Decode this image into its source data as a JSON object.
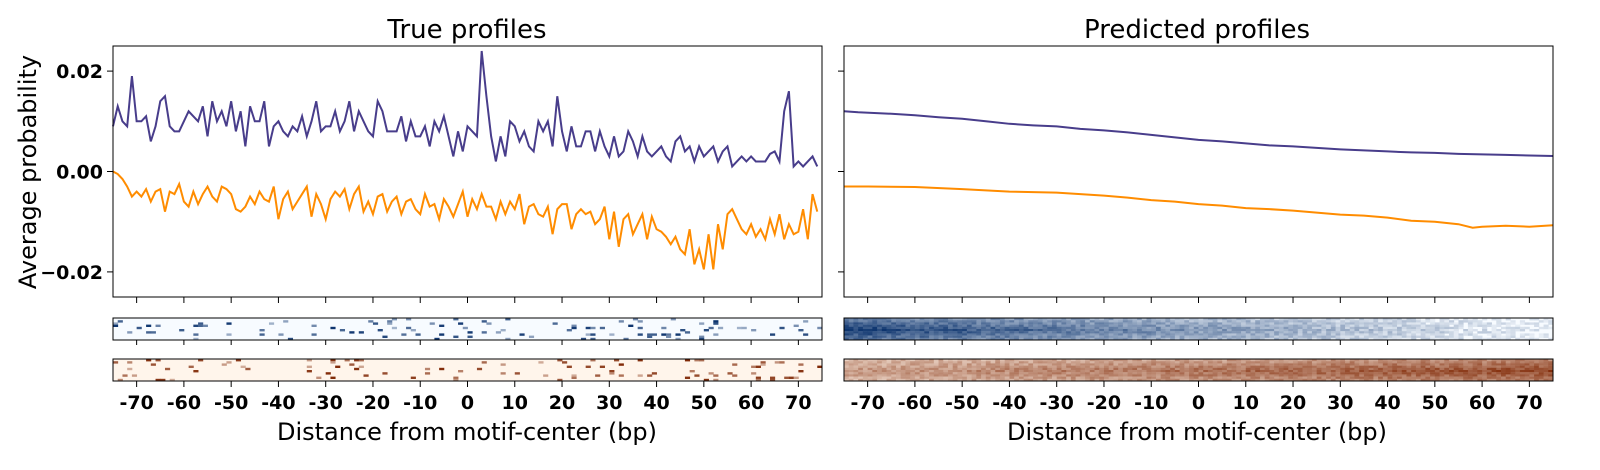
{
  "figure": {
    "y_axis_label": "Average probability",
    "x_axis_label": "Distance from motif-center (bp)"
  },
  "colors": {
    "series_purple": "#483D8B",
    "series_orange": "#FF8C00",
    "heatmap_blue_low": "#f7fbff",
    "heatmap_blue_high": "#08306b",
    "heatmap_orange_low": "#fff5eb",
    "heatmap_orange_high": "#7f2704"
  },
  "chart_data": [
    {
      "type": "line",
      "title": "True profiles",
      "xlabel": "Distance from motif-center (bp)",
      "ylabel": "Average probability",
      "xlim": [
        -75,
        75
      ],
      "ylim": [
        -0.025,
        0.025
      ],
      "xticks": [
        -70,
        -60,
        -50,
        -40,
        -30,
        -20,
        -10,
        0,
        10,
        20,
        30,
        40,
        50,
        60,
        70
      ],
      "yticks": [
        0.02,
        0.0,
        -0.02
      ],
      "ytick_labels": [
        "0.02",
        "0.00",
        "−0.02"
      ],
      "x_start": -75,
      "x_step": 1,
      "series": [
        {
          "values": [
            0.009,
            0.013,
            0.01,
            0.009,
            0.019,
            0.01,
            0.01,
            0.011,
            0.006,
            0.009,
            0.014,
            0.015,
            0.009,
            0.008,
            0.008,
            0.01,
            0.012,
            0.011,
            0.01,
            0.013,
            0.007,
            0.014,
            0.01,
            0.012,
            0.009,
            0.014,
            0.008,
            0.012,
            0.005,
            0.013,
            0.01,
            0.01,
            0.014,
            0.005,
            0.009,
            0.01,
            0.008,
            0.007,
            0.009,
            0.008,
            0.011,
            0.007,
            0.01,
            0.014,
            0.008,
            0.009,
            0.009,
            0.012,
            0.008,
            0.01,
            0.014,
            0.008,
            0.012,
            0.01,
            0.008,
            0.007,
            0.014,
            0.012,
            0.008,
            0.008,
            0.008,
            0.011,
            0.006,
            0.01,
            0.007,
            0.007,
            0.009,
            0.005,
            0.01,
            0.008,
            0.011,
            0.007,
            0.003,
            0.008,
            0.004,
            0.009,
            0.008,
            0.007,
            0.024,
            0.015,
            0.007,
            0.002,
            0.007,
            0.003,
            0.01,
            0.009,
            0.006,
            0.008,
            0.005,
            0.004,
            0.01,
            0.008,
            0.01,
            0.005,
            0.015,
            0.008,
            0.004,
            0.009,
            0.005,
            0.005,
            0.008,
            0.008,
            0.004,
            0.008,
            0.005,
            0.003,
            0.007,
            0.003,
            0.004,
            0.008,
            0.006,
            0.003,
            0.007,
            0.004,
            0.003,
            0.004,
            0.005,
            0.003,
            0.002,
            0.006,
            0.007,
            0.004,
            0.005,
            0.002,
            0.005,
            0.003,
            0.004,
            0.005,
            0.002,
            0.004,
            0.005,
            0.001,
            0.002,
            0.003,
            0.002,
            0.003,
            0.002,
            0.002,
            0.002,
            0.0035,
            0.004,
            0.002,
            0.012,
            0.016,
            0.001,
            0.002,
            0.001,
            0.002,
            0.003,
            0.001
          ]
        },
        {
          "values": [
            0.0,
            -0.0005,
            -0.0015,
            -0.003,
            -0.005,
            -0.004,
            -0.005,
            -0.0035,
            -0.006,
            -0.004,
            -0.0035,
            -0.008,
            -0.004,
            -0.0045,
            -0.0025,
            -0.006,
            -0.007,
            -0.004,
            -0.0065,
            -0.0045,
            -0.003,
            -0.005,
            -0.006,
            -0.003,
            -0.0035,
            -0.0045,
            -0.0075,
            -0.008,
            -0.007,
            -0.005,
            -0.0065,
            -0.004,
            -0.0055,
            -0.006,
            -0.003,
            -0.0095,
            -0.0055,
            -0.004,
            -0.0075,
            -0.006,
            -0.0045,
            -0.003,
            -0.009,
            -0.0045,
            -0.0065,
            -0.0095,
            -0.0055,
            -0.004,
            -0.005,
            -0.0035,
            -0.0075,
            -0.0045,
            -0.003,
            -0.008,
            -0.006,
            -0.0085,
            -0.005,
            -0.0045,
            -0.008,
            -0.006,
            -0.005,
            -0.0085,
            -0.006,
            -0.0055,
            -0.0075,
            -0.0085,
            -0.0045,
            -0.007,
            -0.0065,
            -0.0095,
            -0.0055,
            -0.007,
            -0.009,
            -0.0065,
            -0.004,
            -0.009,
            -0.0055,
            -0.0075,
            -0.0045,
            -0.007,
            -0.007,
            -0.0095,
            -0.006,
            -0.0085,
            -0.006,
            -0.0075,
            -0.0045,
            -0.0105,
            -0.007,
            -0.0065,
            -0.0085,
            -0.009,
            -0.007,
            -0.0125,
            -0.0075,
            -0.0065,
            -0.0065,
            -0.0115,
            -0.0085,
            -0.0075,
            -0.0085,
            -0.008,
            -0.0105,
            -0.0095,
            -0.007,
            -0.0135,
            -0.008,
            -0.015,
            -0.0095,
            -0.0085,
            -0.0125,
            -0.0105,
            -0.0085,
            -0.0135,
            -0.009,
            -0.0115,
            -0.012,
            -0.013,
            -0.0145,
            -0.013,
            -0.0155,
            -0.0165,
            -0.0115,
            -0.0185,
            -0.0155,
            -0.0195,
            -0.0125,
            -0.0195,
            -0.0105,
            -0.0155,
            -0.0085,
            -0.0075,
            -0.0095,
            -0.0115,
            -0.0125,
            -0.0105,
            -0.013,
            -0.0115,
            -0.0135,
            -0.0095,
            -0.0125,
            -0.0085,
            -0.0135,
            -0.0105,
            -0.0125,
            -0.012,
            -0.0075,
            -0.0135,
            -0.0045,
            -0.008
          ]
        }
      ],
      "heatmaps": {
        "rows": 10,
        "top_palette": "blue",
        "bottom_palette": "orange",
        "pattern": "sparse"
      }
    },
    {
      "type": "line",
      "title": "Predicted profiles",
      "xlabel": "Distance from motif-center (bp)",
      "xlim": [
        -75,
        75
      ],
      "ylim": [
        -0.025,
        0.025
      ],
      "xticks": [
        -70,
        -60,
        -50,
        -40,
        -30,
        -20,
        -10,
        0,
        10,
        20,
        30,
        40,
        50,
        60,
        70
      ],
      "yticks": [
        0.02,
        0.0,
        -0.02
      ],
      "x_start": -75,
      "x_step": 1,
      "series": [
        {
          "points": [
            [
              -75,
              0.012
            ],
            [
              -72,
              0.0118
            ],
            [
              -65,
              0.0115
            ],
            [
              -60,
              0.0112
            ],
            [
              -55,
              0.0108
            ],
            [
              -50,
              0.0105
            ],
            [
              -45,
              0.01
            ],
            [
              -40,
              0.0095
            ],
            [
              -35,
              0.0092
            ],
            [
              -30,
              0.009
            ],
            [
              -25,
              0.0085
            ],
            [
              -20,
              0.0082
            ],
            [
              -15,
              0.0078
            ],
            [
              -10,
              0.0073
            ],
            [
              -5,
              0.0068
            ],
            [
              0,
              0.0063
            ],
            [
              5,
              0.006
            ],
            [
              10,
              0.0056
            ],
            [
              15,
              0.0052
            ],
            [
              20,
              0.005
            ],
            [
              25,
              0.0047
            ],
            [
              30,
              0.0044
            ],
            [
              35,
              0.0042
            ],
            [
              40,
              0.004
            ],
            [
              45,
              0.0038
            ],
            [
              50,
              0.0037
            ],
            [
              55,
              0.0035
            ],
            [
              60,
              0.0034
            ],
            [
              65,
              0.0033
            ],
            [
              70,
              0.0032
            ],
            [
              75,
              0.0031
            ]
          ]
        },
        {
          "points": [
            [
              -75,
              -0.003
            ],
            [
              -70,
              -0.003
            ],
            [
              -60,
              -0.0031
            ],
            [
              -50,
              -0.0035
            ],
            [
              -40,
              -0.004
            ],
            [
              -30,
              -0.0042
            ],
            [
              -25,
              -0.0045
            ],
            [
              -20,
              -0.0048
            ],
            [
              -15,
              -0.0052
            ],
            [
              -10,
              -0.0057
            ],
            [
              -5,
              -0.006
            ],
            [
              0,
              -0.0065
            ],
            [
              5,
              -0.0068
            ],
            [
              10,
              -0.0073
            ],
            [
              15,
              -0.0075
            ],
            [
              20,
              -0.0078
            ],
            [
              25,
              -0.0082
            ],
            [
              30,
              -0.0086
            ],
            [
              35,
              -0.0088
            ],
            [
              40,
              -0.0092
            ],
            [
              45,
              -0.0098
            ],
            [
              50,
              -0.01
            ],
            [
              55,
              -0.0105
            ],
            [
              58,
              -0.0112
            ],
            [
              60,
              -0.011
            ],
            [
              65,
              -0.0108
            ],
            [
              70,
              -0.011
            ],
            [
              75,
              -0.0107
            ]
          ]
        }
      ],
      "heatmaps": {
        "rows": 10,
        "top_palette": "blue",
        "bottom_palette": "orange",
        "pattern": "dense-gradient"
      }
    }
  ]
}
